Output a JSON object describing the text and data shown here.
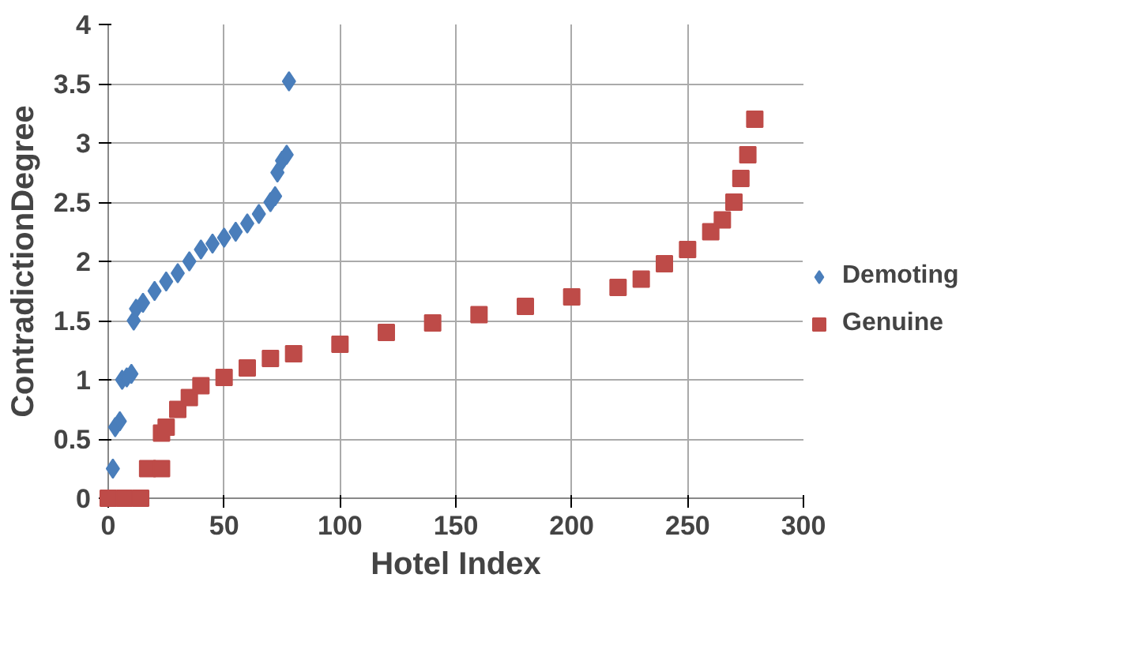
{
  "chart_data": {
    "type": "scatter",
    "xlabel": "Hotel Index",
    "ylabel": "ContradictionDegree",
    "xlim": [
      0,
      300
    ],
    "xticks": [
      0,
      50,
      100,
      150,
      200,
      250,
      300
    ],
    "ylim": [
      0,
      4
    ],
    "yticks": [
      0,
      0.5,
      1,
      1.5,
      2,
      2.5,
      3,
      3.5,
      4
    ],
    "grid": true,
    "legend": "right",
    "series": [
      {
        "name": "Demoting",
        "color": "#4a7ebb",
        "marker": "diamond",
        "x": [
          2,
          3,
          5,
          6,
          8,
          10,
          11,
          12,
          15,
          20,
          25,
          30,
          35,
          40,
          45,
          50,
          55,
          60,
          65,
          70,
          72,
          73,
          75,
          77,
          78
        ],
        "values": [
          0.25,
          0.6,
          0.65,
          1.0,
          1.02,
          1.05,
          1.5,
          1.6,
          1.65,
          1.75,
          1.83,
          1.9,
          2.0,
          2.1,
          2.15,
          2.2,
          2.25,
          2.32,
          2.4,
          2.5,
          2.55,
          2.75,
          2.85,
          2.9,
          3.52
        ]
      },
      {
        "name": "Genuine",
        "color": "#be4b48",
        "marker": "square",
        "x": [
          0,
          7,
          14,
          17,
          23,
          23,
          25,
          30,
          35,
          40,
          50,
          60,
          70,
          80,
          100,
          120,
          140,
          160,
          180,
          200,
          220,
          230,
          240,
          250,
          260,
          265,
          270,
          273,
          276,
          279
        ],
        "values": [
          0,
          0,
          0,
          0.25,
          0.25,
          0.55,
          0.6,
          0.75,
          0.85,
          0.95,
          1.02,
          1.1,
          1.18,
          1.22,
          1.3,
          1.4,
          1.48,
          1.55,
          1.62,
          1.7,
          1.78,
          1.85,
          1.98,
          2.1,
          2.25,
          2.35,
          2.5,
          2.7,
          2.9,
          3.2
        ]
      }
    ]
  }
}
